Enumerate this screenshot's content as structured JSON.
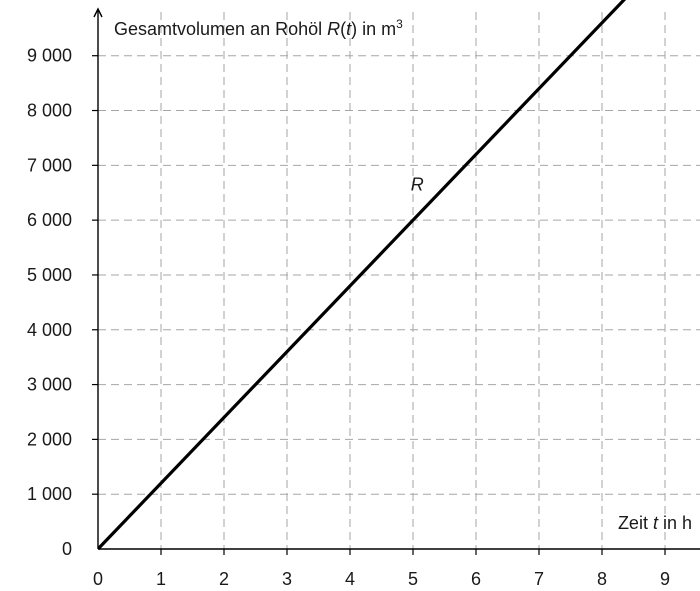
{
  "chart_data": {
    "type": "line",
    "ylabel_parts": {
      "before": "Gesamtvolumen an Rohöl ",
      "var": "R",
      "paren_open": "(",
      "arg": "t",
      "paren_close": ")",
      "unit_text": " in m",
      "unit_sup": "3"
    },
    "xlabel_parts": {
      "before": "Zeit ",
      "var": "t",
      "after": " in h"
    },
    "series": [
      {
        "name": "R",
        "x": [
          0,
          10
        ],
        "y": [
          0,
          12000
        ]
      }
    ],
    "xlim": [
      0,
      10
    ],
    "ylim": [
      0,
      10000
    ],
    "x_ticks": [
      0,
      1,
      2,
      3,
      4,
      5,
      6,
      7,
      8,
      9
    ],
    "x_tick_labels": [
      "0",
      "1",
      "2",
      "3",
      "4",
      "5",
      "6",
      "7",
      "8",
      "9"
    ],
    "y_ticks": [
      0,
      1000,
      2000,
      3000,
      4000,
      5000,
      6000,
      7000,
      8000,
      9000
    ],
    "y_tick_labels": [
      "0",
      "1 000",
      "2 000",
      "3 000",
      "4 000",
      "5 000",
      "6 000",
      "7 000",
      "8 000",
      "9 000"
    ],
    "grid": true,
    "grid_style": "dashed",
    "curve_label": "R",
    "curve_label_x": 5.6
  }
}
